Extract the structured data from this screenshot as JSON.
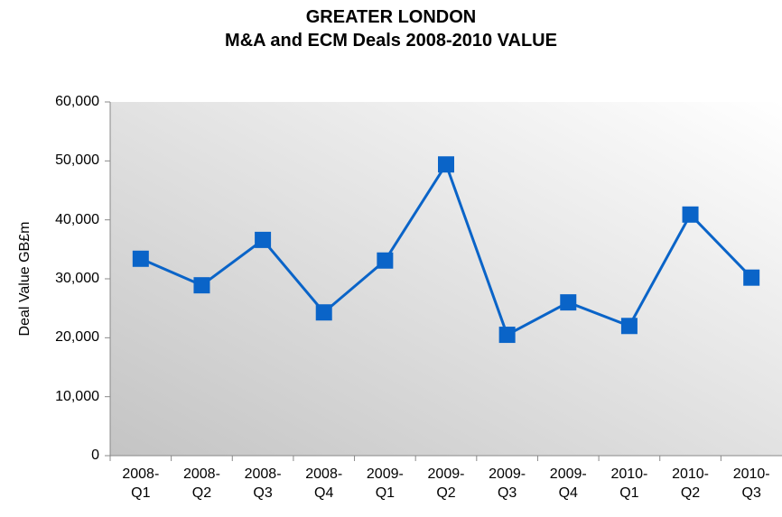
{
  "chart_data": {
    "type": "line",
    "title": "GREATER LONDON",
    "subtitle": "M&A and ECM Deals 2008-2010 VALUE",
    "y_label": "Deal Value GB£m",
    "categories": [
      "2008-Q1",
      "2008-Q2",
      "2008-Q3",
      "2008-Q4",
      "2009-Q1",
      "2009-Q2",
      "2009-Q3",
      "2009-Q4",
      "2010-Q1",
      "2010-Q2",
      "2010-Q3"
    ],
    "series": [
      {
        "name": "Deal Value",
        "color": "#0a64c8",
        "values": [
          33400,
          28900,
          36600,
          24300,
          33100,
          49400,
          20500,
          26000,
          22000,
          40900,
          30200
        ]
      }
    ],
    "ylim": [
      0,
      60000
    ],
    "yticks": [
      0,
      {
        "value": 10000,
        "label": "10,000"
      },
      {
        "value": 20000,
        "label": "20,000"
      },
      {
        "value": 30000,
        "label": "30,000"
      },
      {
        "value": 40000,
        "label": "40,000"
      },
      {
        "value": 50000,
        "label": "50,000"
      },
      {
        "value": 60000,
        "label": "60,000"
      }
    ],
    "grid": false
  }
}
